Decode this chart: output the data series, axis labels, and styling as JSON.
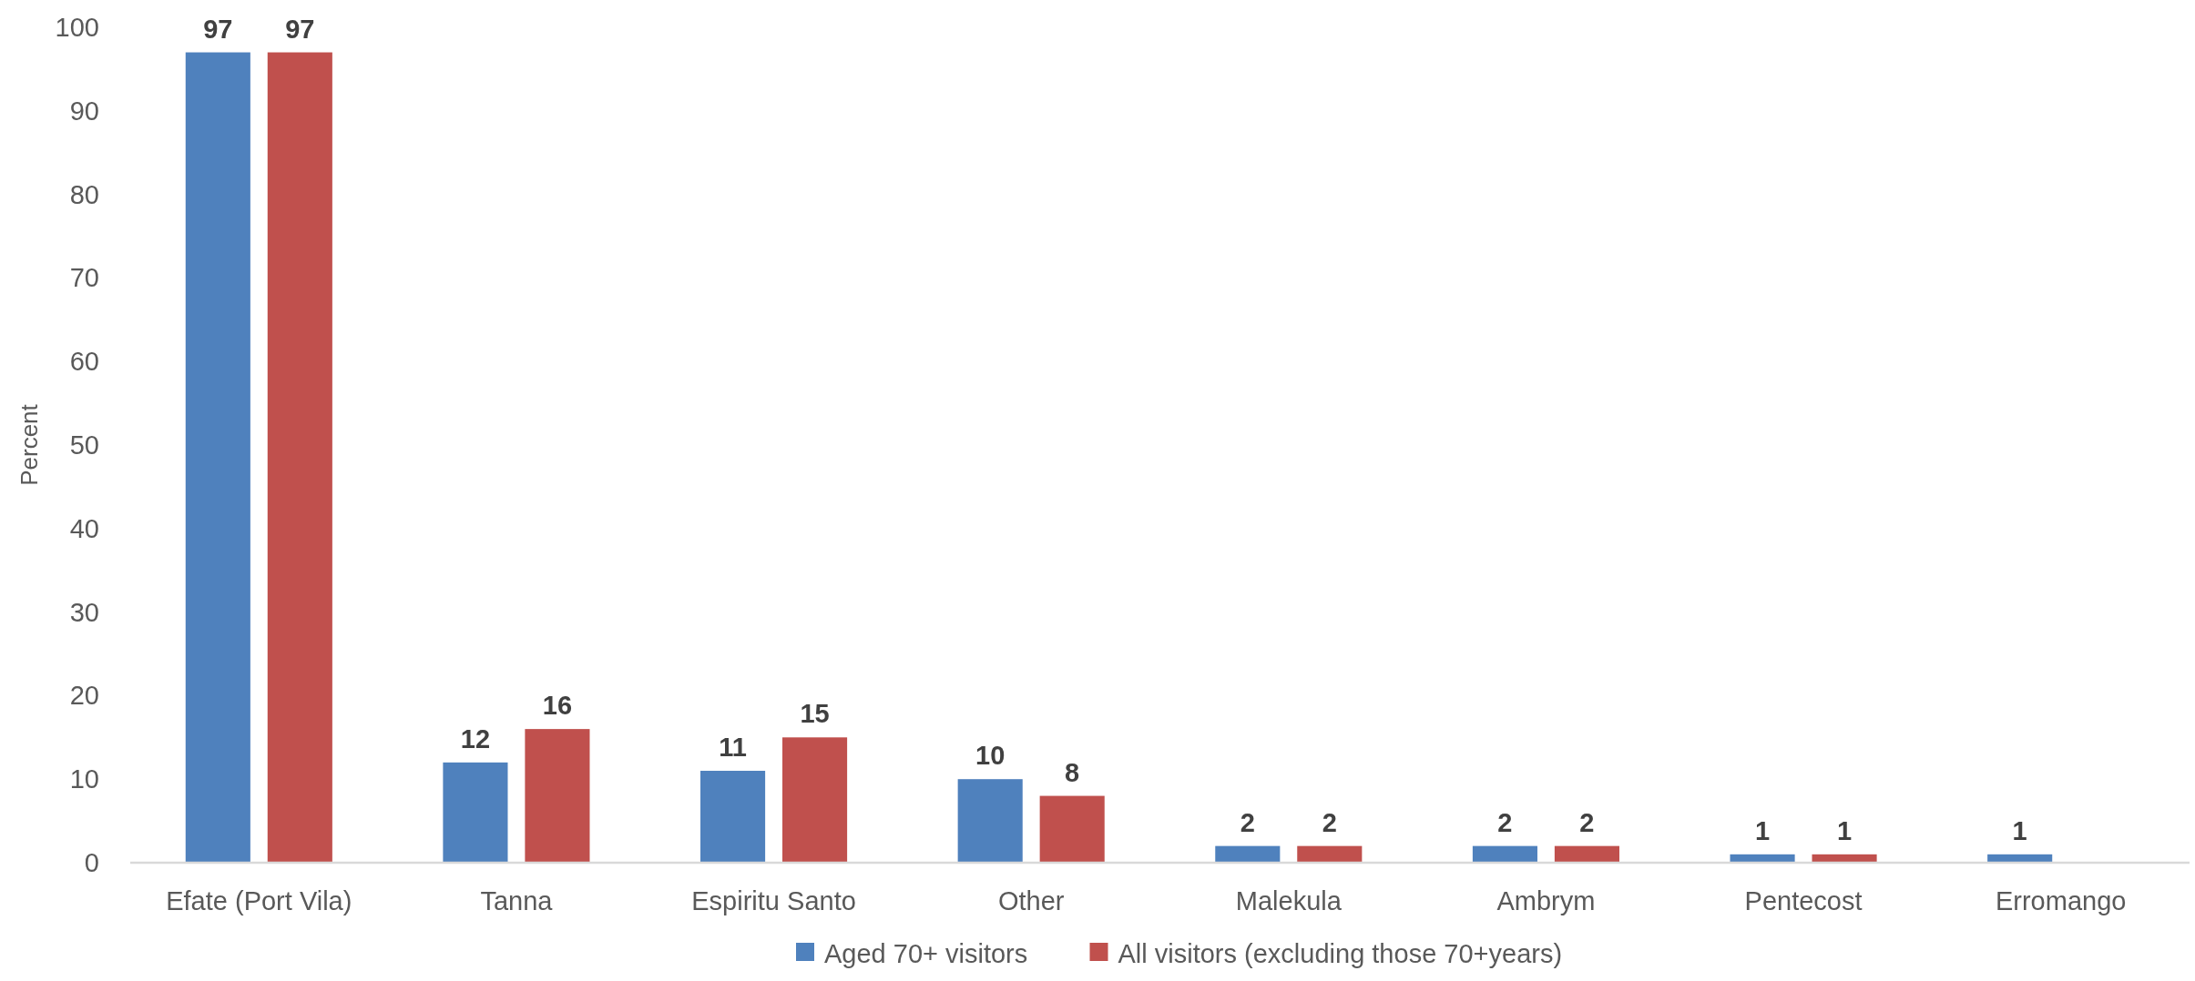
{
  "chart_data": {
    "type": "bar",
    "ylabel": "Percent",
    "categories": [
      "Efate (Port Vila)",
      "Tanna",
      "Espiritu Santo",
      "Other",
      "Malekula",
      "Ambrym",
      "Pentecost",
      "Erromango"
    ],
    "series": [
      {
        "name": "Aged 70+ visitors",
        "color": "#4f81bd",
        "values": [
          97,
          12,
          11,
          10,
          2,
          2,
          1,
          1
        ]
      },
      {
        "name": "All visitors (excluding those 70+years)",
        "color": "#c0504d",
        "values": [
          97,
          16,
          15,
          8,
          2,
          2,
          1,
          null
        ]
      }
    ],
    "ylim": [
      0,
      100
    ],
    "yticks": [
      0,
      10,
      20,
      30,
      40,
      50,
      60,
      70,
      80,
      90,
      100
    ],
    "grid": false,
    "legend": "bottom",
    "data_labels": true
  }
}
